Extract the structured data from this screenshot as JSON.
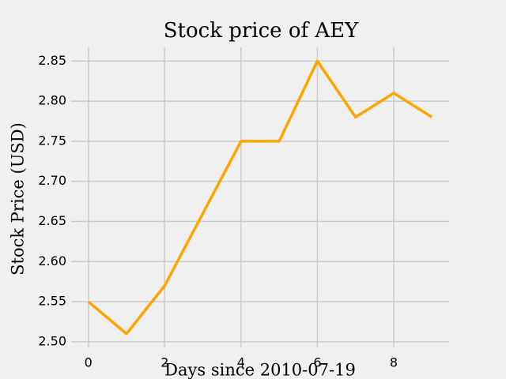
{
  "chart_data": {
    "type": "line",
    "title": "Stock price of AEY",
    "x_label": "Days since 2010-07-19",
    "y_label": "Stock Price (USD)",
    "x": [
      0,
      1,
      2,
      3,
      4,
      5,
      6,
      7,
      8,
      9
    ],
    "series": [
      {
        "name": "AEY",
        "color": "#ffa500",
        "values": [
          2.55,
          2.51,
          2.57,
          2.66,
          2.75,
          2.75,
          2.85,
          2.78,
          2.81,
          2.78
        ]
      }
    ],
    "xlim": [
      -0.45,
      9.45
    ],
    "xticks": [
      0,
      2,
      4,
      6,
      8
    ],
    "ylim": [
      2.493,
      2.867
    ],
    "yticks": [
      {
        "value": 2.5,
        "label": "2.50"
      },
      {
        "value": 2.55,
        "label": "2.55"
      },
      {
        "value": 2.6,
        "label": "2.60"
      },
      {
        "value": 2.65,
        "label": "2.65"
      },
      {
        "value": 2.7,
        "label": "2.70"
      },
      {
        "value": 2.75,
        "label": "2.75"
      },
      {
        "value": 2.8,
        "label": "2.80"
      },
      {
        "value": 2.85,
        "label": "2.85"
      }
    ],
    "grid": true
  }
}
